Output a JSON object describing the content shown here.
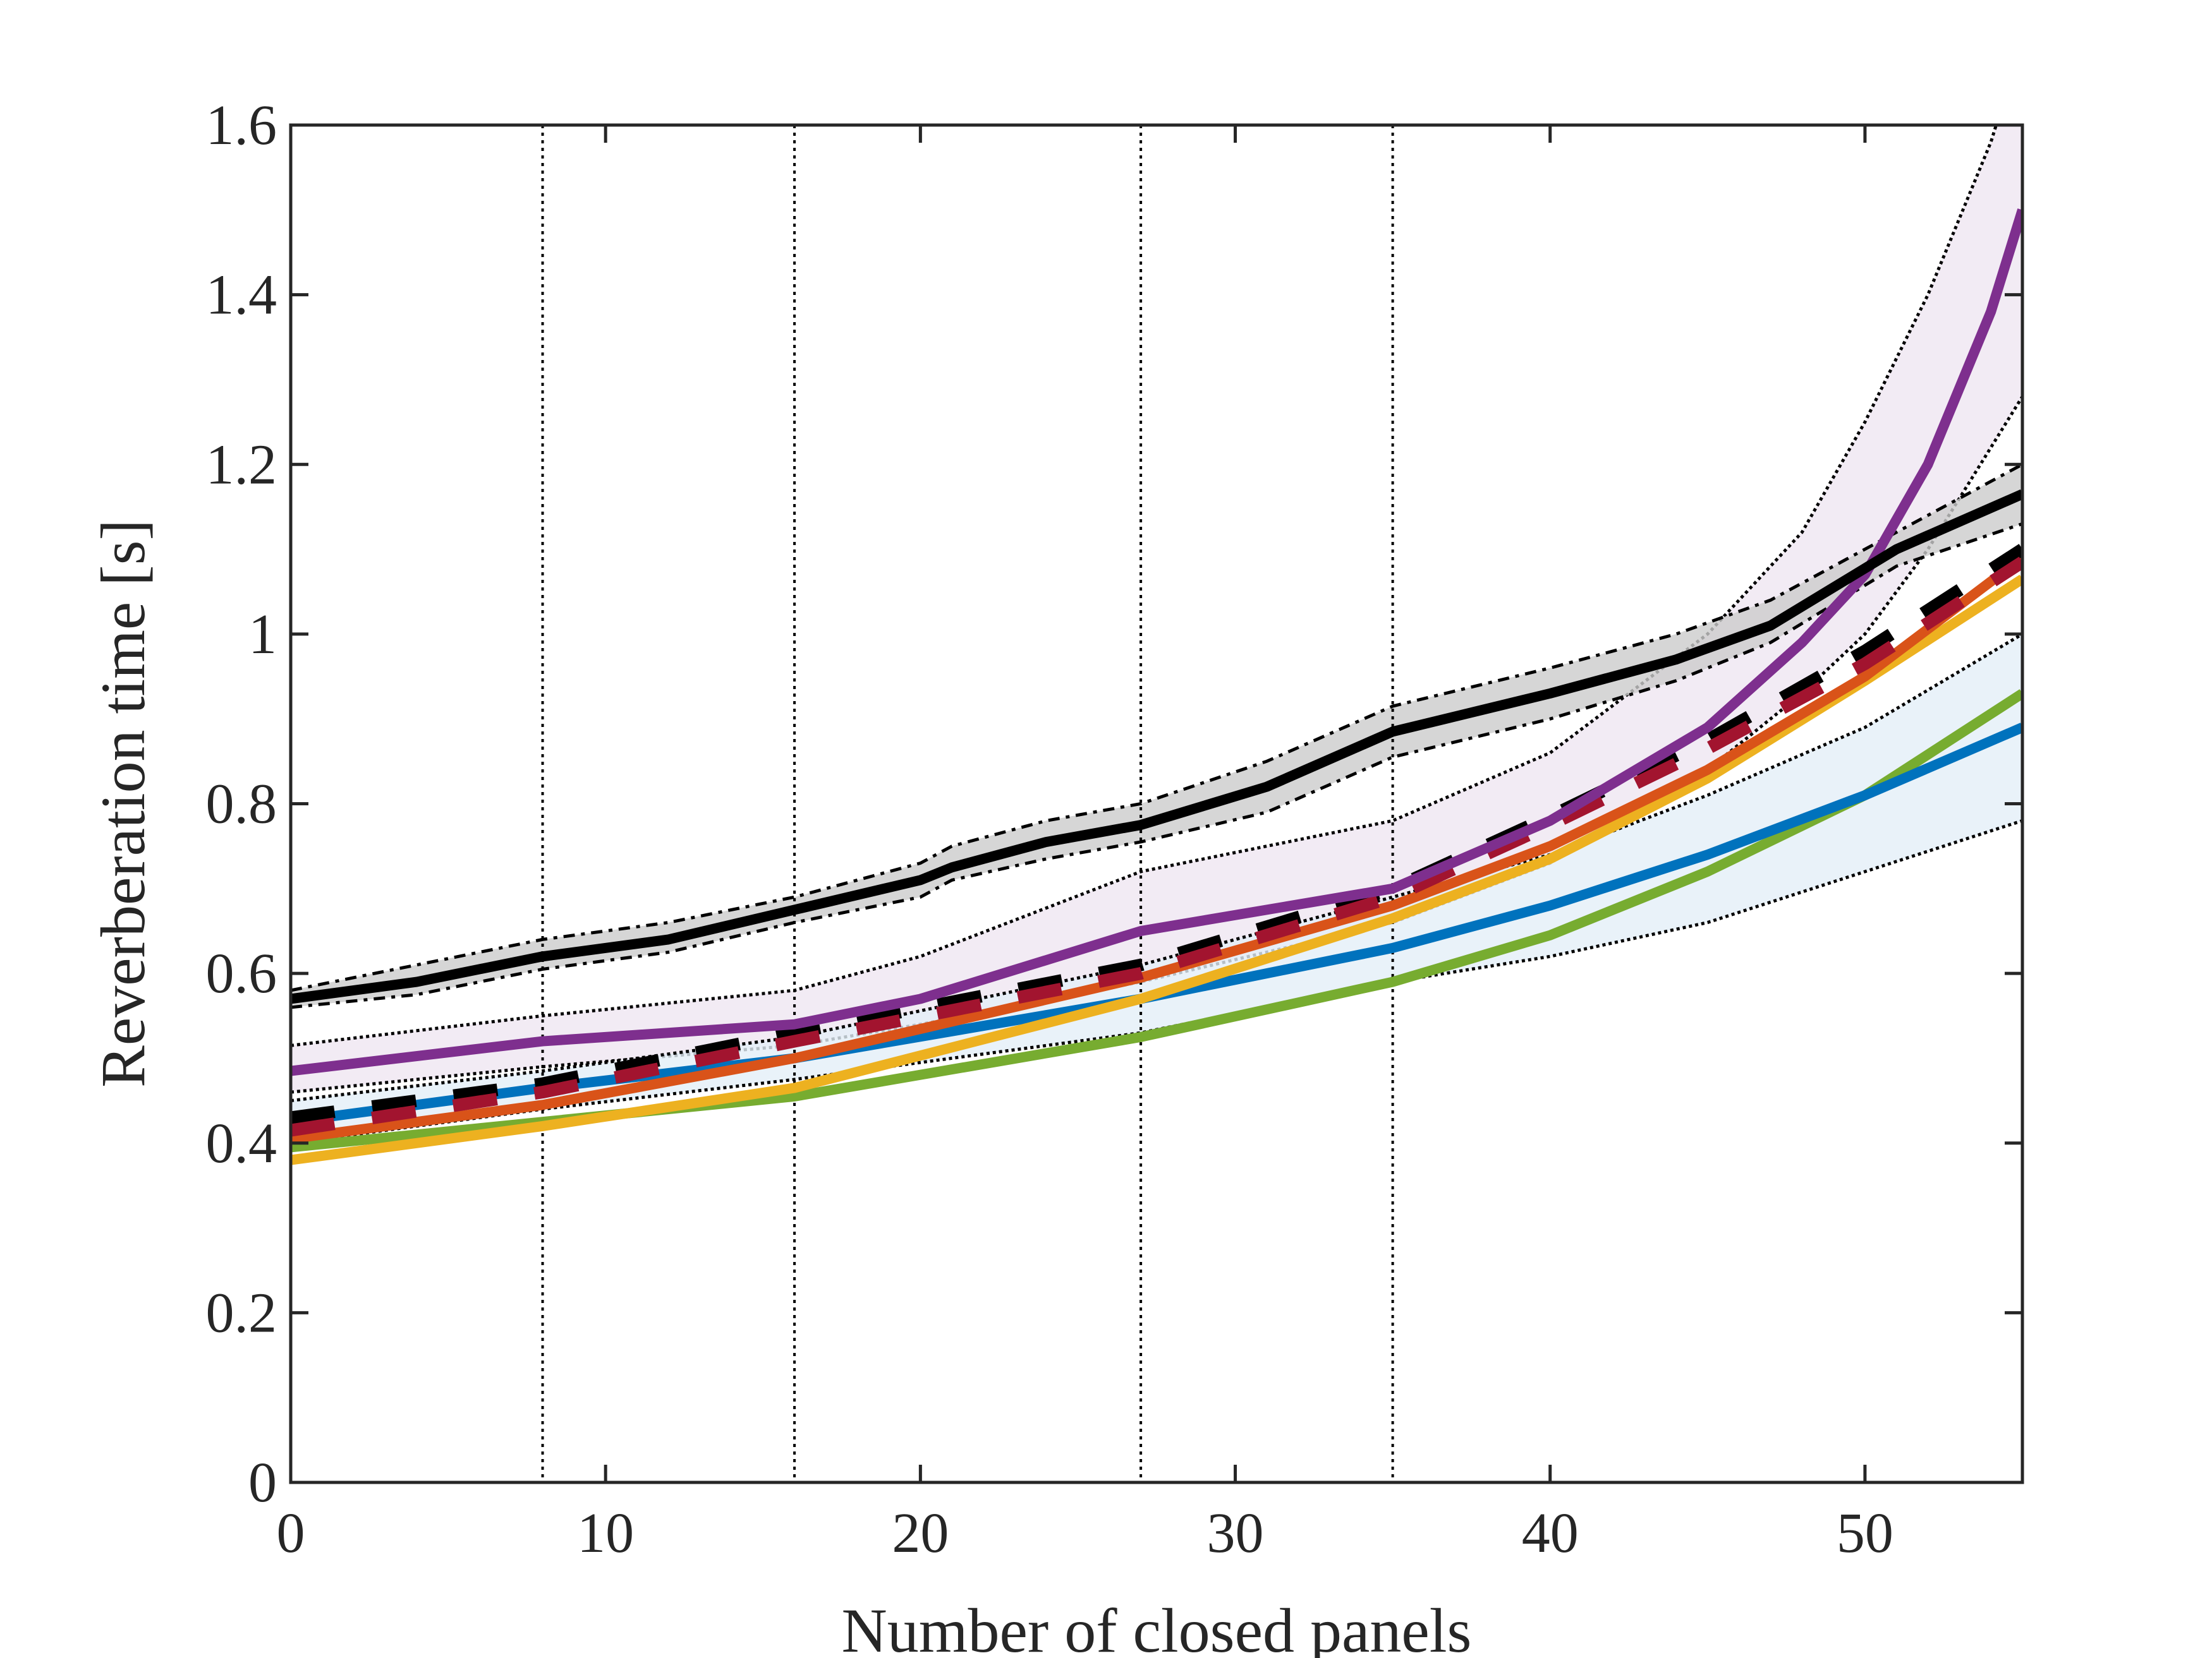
{
  "chart_data": {
    "type": "line",
    "title": "",
    "xlabel": "Number of closed panels",
    "ylabel": "Reverberation time [s]",
    "xlim": [
      0,
      55
    ],
    "ylim": [
      0,
      1.6
    ],
    "xticks": [
      "0",
      "10",
      "20",
      "30",
      "40",
      "50"
    ],
    "yticks": [
      "0",
      "0.2",
      "0.4",
      "0.6",
      "0.8",
      "1",
      "1.2",
      "1.4",
      "1.6"
    ],
    "grid": false,
    "legend": "none",
    "vertical_markers": [
      8,
      16,
      27,
      35
    ],
    "bands": [
      {
        "color": "#7E2F8E",
        "fill": "#EFE6F1",
        "x": [
          0,
          8,
          16,
          20,
          27,
          35,
          40,
          45,
          48,
          50,
          52,
          54,
          55
        ],
        "upper": [
          0.515,
          0.55,
          0.58,
          0.62,
          0.72,
          0.78,
          0.86,
          1.0,
          1.12,
          1.25,
          1.4,
          1.58,
          1.7
        ],
        "lower": [
          0.46,
          0.49,
          0.515,
          0.54,
          0.59,
          0.66,
          0.73,
          0.84,
          0.93,
          1.0,
          1.1,
          1.22,
          1.28
        ]
      },
      {
        "color": "#0072BD",
        "fill": "#E3EFF7",
        "x": [
          0,
          8,
          16,
          27,
          35,
          40,
          45,
          50,
          55
        ],
        "upper": [
          0.45,
          0.485,
          0.525,
          0.61,
          0.69,
          0.74,
          0.81,
          0.89,
          1.0
        ],
        "lower": [
          0.4,
          0.44,
          0.475,
          0.53,
          0.59,
          0.62,
          0.66,
          0.72,
          0.78
        ]
      },
      {
        "color": "#000000",
        "fill": "#CCCCCC",
        "x": [
          0,
          4,
          8,
          12,
          16,
          20,
          21,
          24,
          27,
          31,
          35,
          40,
          44,
          47,
          51,
          55
        ],
        "upper": [
          0.58,
          0.61,
          0.64,
          0.66,
          0.69,
          0.73,
          0.75,
          0.78,
          0.8,
          0.85,
          0.915,
          0.96,
          1.0,
          1.04,
          1.12,
          1.2
        ],
        "lower": [
          0.56,
          0.575,
          0.605,
          0.625,
          0.66,
          0.69,
          0.71,
          0.735,
          0.755,
          0.79,
          0.855,
          0.9,
          0.945,
          0.99,
          1.08,
          1.13
        ]
      }
    ],
    "series": [
      {
        "color": "#77AC30",
        "style": "solid",
        "x": [
          0,
          8,
          16,
          27,
          35,
          40,
          45,
          50,
          55
        ],
        "y": [
          0.395,
          0.425,
          0.455,
          0.525,
          0.59,
          0.645,
          0.72,
          0.81,
          0.93
        ]
      },
      {
        "color": "#0072BD",
        "style": "solid",
        "x": [
          0,
          8,
          16,
          27,
          35,
          40,
          45,
          50,
          55
        ],
        "y": [
          0.425,
          0.465,
          0.5,
          0.57,
          0.63,
          0.68,
          0.74,
          0.81,
          0.89
        ]
      },
      {
        "color": "#EDB120",
        "style": "solid",
        "x": [
          0,
          8,
          16,
          27,
          35,
          40,
          45,
          50,
          55
        ],
        "y": [
          0.38,
          0.42,
          0.465,
          0.57,
          0.665,
          0.735,
          0.83,
          0.945,
          1.065
        ]
      },
      {
        "color": "#D95319",
        "style": "solid",
        "x": [
          0,
          8,
          16,
          27,
          35,
          40,
          45,
          50,
          55
        ],
        "y": [
          0.405,
          0.445,
          0.5,
          0.595,
          0.68,
          0.75,
          0.84,
          0.95,
          1.09
        ]
      },
      {
        "color": "#000000",
        "style": "dashed",
        "x": [
          0,
          8,
          16,
          27,
          35,
          40,
          45,
          50,
          55
        ],
        "y": [
          0.43,
          0.47,
          0.53,
          0.61,
          0.7,
          0.785,
          0.875,
          0.98,
          1.1
        ]
      },
      {
        "color": "#A2142F",
        "style": "dashed",
        "x": [
          0,
          8,
          16,
          27,
          35,
          40,
          45,
          50,
          55
        ],
        "y": [
          0.415,
          0.46,
          0.52,
          0.6,
          0.69,
          0.775,
          0.865,
          0.965,
          1.085
        ]
      },
      {
        "color": "#7E2F8E",
        "style": "solid",
        "x": [
          0,
          8,
          16,
          20,
          27,
          35,
          40,
          45,
          48,
          50,
          52,
          54,
          55
        ],
        "y": [
          0.485,
          0.52,
          0.54,
          0.57,
          0.65,
          0.7,
          0.78,
          0.89,
          0.99,
          1.07,
          1.2,
          1.38,
          1.5
        ]
      },
      {
        "color": "#000000",
        "style": "solid",
        "x": [
          0,
          4,
          8,
          12,
          16,
          20,
          21,
          24,
          27,
          31,
          35,
          40,
          44,
          47,
          51,
          55
        ],
        "y": [
          0.57,
          0.59,
          0.62,
          0.64,
          0.675,
          0.71,
          0.725,
          0.755,
          0.775,
          0.82,
          0.885,
          0.93,
          0.97,
          1.01,
          1.1,
          1.165
        ]
      }
    ]
  }
}
